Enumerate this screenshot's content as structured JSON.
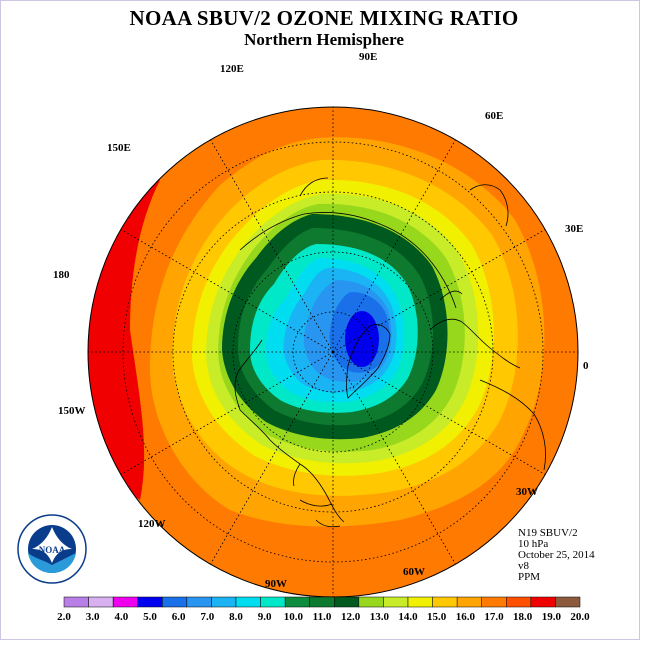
{
  "title": "NOAA SBUV/2 OZONE MIXING RATIO",
  "subtitle": "Northern Hemisphere",
  "longitude_labels": {
    "lon_90e": "90E",
    "lon_60e": "60E",
    "lon_30e": "30E",
    "lon_0": "0",
    "lon_30w": "30W",
    "lon_60w": "60W",
    "lon_90w": "90W",
    "lon_120w": "120W",
    "lon_150w": "150W",
    "lon_180": "180",
    "lon_150e": "150E",
    "lon_120e": "120E"
  },
  "info": {
    "satellite": "N19 SBUV/2",
    "pressure": "10 hPa",
    "date": "October 25, 2014",
    "version": "v8",
    "units": "PPM"
  },
  "logo": {
    "text": "NOAA",
    "ring_text": "NATIONAL OCEANIC AND ATMOSPHERIC ADMINISTRATION · U.S. DEPARTMENT OF COMMERCE"
  },
  "colorbar": {
    "colors": [
      "#b87fe6",
      "#d8b0f0",
      "#ee00ee",
      "#0000ee",
      "#1a70e8",
      "#2896f0",
      "#1ab4f4",
      "#00dcf0",
      "#00e8c8",
      "#0c8c3c",
      "#0e7a30",
      "#005a20",
      "#98d81c",
      "#c8ec28",
      "#f0f000",
      "#ffc800",
      "#ffa400",
      "#ff7a00",
      "#ff5000",
      "#f00000",
      "#8c5a3c"
    ],
    "ticks": [
      "2.0",
      "3.0",
      "4.0",
      "5.0",
      "6.0",
      "7.0",
      "8.0",
      "9.0",
      "10.0",
      "11.0",
      "12.0",
      "13.0",
      "14.0",
      "15.0",
      "16.0",
      "17.0",
      "18.0",
      "19.0",
      "20.0"
    ]
  },
  "map": {
    "projection": "north-polar-stereographic",
    "contour_rings_ppm": [
      17.0,
      16.0,
      15.0,
      14.0,
      13.0,
      12.0,
      11.0,
      10.0,
      9.0,
      8.0,
      7.0,
      6.0,
      5.0
    ]
  }
}
